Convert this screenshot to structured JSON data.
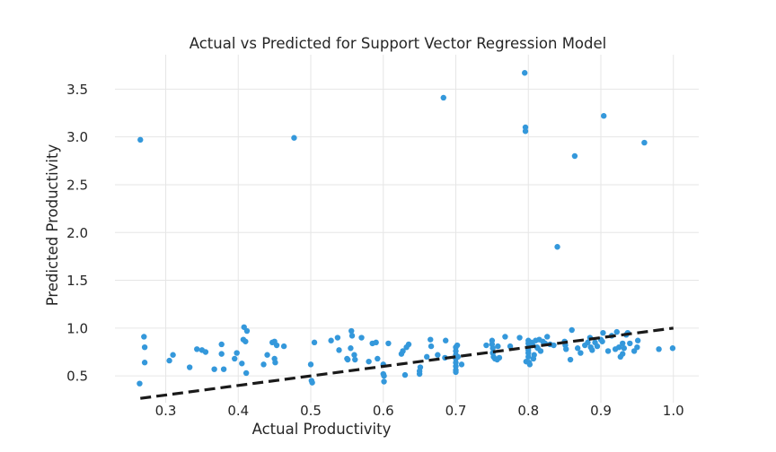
{
  "chart_data": {
    "type": "scatter",
    "title": "Actual vs Predicted for Support Vector Regression Model",
    "xlabel": "Actual Productivity",
    "ylabel": "Predicted Productivity",
    "xlim": [
      0.23,
      1.035
    ],
    "ylim": [
      0.22,
      3.86
    ],
    "xticks": [
      "0.3",
      "0.4",
      "0.5",
      "0.6",
      "0.7",
      "0.8",
      "0.9",
      "1.0"
    ],
    "yticks": [
      "0.5",
      "1.0",
      "1.5",
      "2.0",
      "2.5",
      "3.0",
      "3.5"
    ],
    "grid": true,
    "point_color": "#3498db",
    "reference_line": {
      "x": [
        0.265,
        1.0
      ],
      "y": [
        0.265,
        1.0
      ],
      "style": "dashed",
      "color": "#1a1a1a"
    },
    "points": [
      [
        0.264,
        0.42
      ],
      [
        0.265,
        2.97
      ],
      [
        0.27,
        0.91
      ],
      [
        0.271,
        0.8
      ],
      [
        0.271,
        0.64
      ],
      [
        0.305,
        0.66
      ],
      [
        0.31,
        0.72
      ],
      [
        0.333,
        0.59
      ],
      [
        0.343,
        0.78
      ],
      [
        0.35,
        0.77
      ],
      [
        0.355,
        0.75
      ],
      [
        0.367,
        0.57
      ],
      [
        0.377,
        0.83
      ],
      [
        0.377,
        0.73
      ],
      [
        0.38,
        0.57
      ],
      [
        0.395,
        0.68
      ],
      [
        0.398,
        0.74
      ],
      [
        0.405,
        0.63
      ],
      [
        0.407,
        0.88
      ],
      [
        0.408,
        1.01
      ],
      [
        0.41,
        0.86
      ],
      [
        0.411,
        0.53
      ],
      [
        0.412,
        0.97
      ],
      [
        0.435,
        0.62
      ],
      [
        0.44,
        0.72
      ],
      [
        0.447,
        0.85
      ],
      [
        0.45,
        0.86
      ],
      [
        0.45,
        0.68
      ],
      [
        0.451,
        0.64
      ],
      [
        0.453,
        0.82
      ],
      [
        0.463,
        0.81
      ],
      [
        0.477,
        2.99
      ],
      [
        0.5,
        0.62
      ],
      [
        0.501,
        0.45
      ],
      [
        0.502,
        0.43
      ],
      [
        0.505,
        0.85
      ],
      [
        0.528,
        0.87
      ],
      [
        0.537,
        0.9
      ],
      [
        0.539,
        0.77
      ],
      [
        0.55,
        0.68
      ],
      [
        0.551,
        0.67
      ],
      [
        0.555,
        0.79
      ],
      [
        0.556,
        0.97
      ],
      [
        0.557,
        0.92
      ],
      [
        0.56,
        0.72
      ],
      [
        0.561,
        0.67
      ],
      [
        0.57,
        0.9
      ],
      [
        0.58,
        0.65
      ],
      [
        0.585,
        0.84
      ],
      [
        0.59,
        0.85
      ],
      [
        0.592,
        0.68
      ],
      [
        0.6,
        0.62
      ],
      [
        0.6,
        0.52
      ],
      [
        0.601,
        0.5
      ],
      [
        0.601,
        0.44
      ],
      [
        0.607,
        0.84
      ],
      [
        0.625,
        0.73
      ],
      [
        0.627,
        0.76
      ],
      [
        0.63,
        0.51
      ],
      [
        0.632,
        0.8
      ],
      [
        0.635,
        0.83
      ],
      [
        0.65,
        0.52
      ],
      [
        0.65,
        0.55
      ],
      [
        0.651,
        0.59
      ],
      [
        0.66,
        0.7
      ],
      [
        0.665,
        0.88
      ],
      [
        0.666,
        0.81
      ],
      [
        0.675,
        0.72
      ],
      [
        0.683,
        3.41
      ],
      [
        0.685,
        0.69
      ],
      [
        0.686,
        0.87
      ],
      [
        0.7,
        0.8
      ],
      [
        0.7,
        0.76
      ],
      [
        0.7,
        0.72
      ],
      [
        0.7,
        0.68
      ],
      [
        0.7,
        0.64
      ],
      [
        0.7,
        0.6
      ],
      [
        0.7,
        0.56
      ],
      [
        0.7,
        0.54
      ],
      [
        0.702,
        0.82
      ],
      [
        0.703,
        0.7
      ],
      [
        0.708,
        0.62
      ],
      [
        0.742,
        0.82
      ],
      [
        0.75,
        0.87
      ],
      [
        0.75,
        0.83
      ],
      [
        0.751,
        0.79
      ],
      [
        0.751,
        0.74
      ],
      [
        0.752,
        0.7
      ],
      [
        0.754,
        0.68
      ],
      [
        0.757,
        0.67
      ],
      [
        0.758,
        0.81
      ],
      [
        0.76,
        0.69
      ],
      [
        0.768,
        0.91
      ],
      [
        0.775,
        0.81
      ],
      [
        0.788,
        0.9
      ],
      [
        0.795,
        3.67
      ],
      [
        0.796,
        3.1
      ],
      [
        0.796,
        3.06
      ],
      [
        0.797,
        0.65
      ],
      [
        0.8,
        0.87
      ],
      [
        0.8,
        0.84
      ],
      [
        0.8,
        0.8
      ],
      [
        0.8,
        0.77
      ],
      [
        0.8,
        0.74
      ],
      [
        0.8,
        0.7
      ],
      [
        0.801,
        0.64
      ],
      [
        0.802,
        0.62
      ],
      [
        0.804,
        0.85
      ],
      [
        0.806,
        0.82
      ],
      [
        0.807,
        0.68
      ],
      [
        0.808,
        0.72
      ],
      [
        0.81,
        0.87
      ],
      [
        0.812,
        0.8
      ],
      [
        0.813,
        0.79
      ],
      [
        0.815,
        0.88
      ],
      [
        0.817,
        0.76
      ],
      [
        0.82,
        0.86
      ],
      [
        0.823,
        0.84
      ],
      [
        0.826,
        0.91
      ],
      [
        0.83,
        0.83
      ],
      [
        0.835,
        0.82
      ],
      [
        0.84,
        1.85
      ],
      [
        0.85,
        0.86
      ],
      [
        0.851,
        0.82
      ],
      [
        0.852,
        0.78
      ],
      [
        0.858,
        0.67
      ],
      [
        0.86,
        0.98
      ],
      [
        0.864,
        2.8
      ],
      [
        0.868,
        0.79
      ],
      [
        0.872,
        0.74
      ],
      [
        0.878,
        0.82
      ],
      [
        0.882,
        0.85
      ],
      [
        0.885,
        0.9
      ],
      [
        0.886,
        0.8
      ],
      [
        0.888,
        0.77
      ],
      [
        0.892,
        0.85
      ],
      [
        0.895,
        0.81
      ],
      [
        0.9,
        0.88
      ],
      [
        0.902,
        0.86
      ],
      [
        0.903,
        0.95
      ],
      [
        0.904,
        3.22
      ],
      [
        0.91,
        0.76
      ],
      [
        0.915,
        0.92
      ],
      [
        0.92,
        0.78
      ],
      [
        0.922,
        0.96
      ],
      [
        0.925,
        0.8
      ],
      [
        0.927,
        0.7
      ],
      [
        0.93,
        0.84
      ],
      [
        0.93,
        0.73
      ],
      [
        0.932,
        0.79
      ],
      [
        0.935,
        0.93
      ],
      [
        0.937,
        0.95
      ],
      [
        0.94,
        0.84
      ],
      [
        0.946,
        0.76
      ],
      [
        0.95,
        0.8
      ],
      [
        0.951,
        0.87
      ],
      [
        0.96,
        2.94
      ],
      [
        0.98,
        0.78
      ],
      [
        0.999,
        0.79
      ]
    ]
  }
}
